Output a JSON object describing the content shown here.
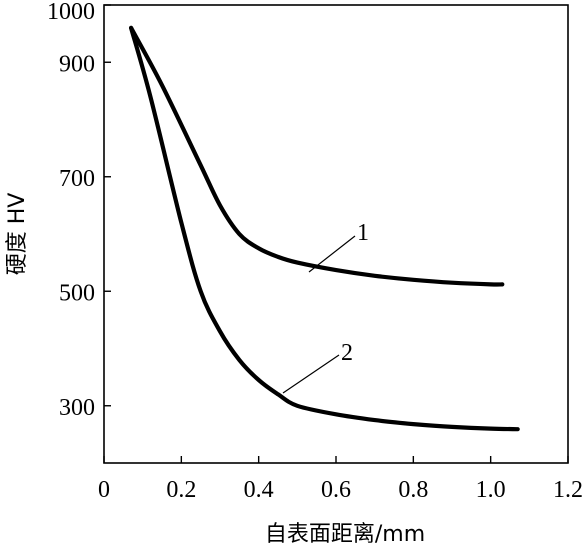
{
  "chart_data": {
    "type": "line",
    "title": "",
    "xlabel": "自表面距离/mm",
    "ylabel": "硬度 HV",
    "xlim": [
      0,
      1.2
    ],
    "ylim": [
      200,
      1000
    ],
    "x_ticks": [
      "0",
      "0.2",
      "0.4",
      "0.6",
      "0.8",
      "1.0",
      "1.2"
    ],
    "y_ticks": [
      "300",
      "500",
      "700",
      "900",
      "1000"
    ],
    "grid": false,
    "legend": "none",
    "series": [
      {
        "name": "1",
        "x": [
          0.07,
          0.15,
          0.25,
          0.3,
          0.35,
          0.4,
          0.45,
          0.5,
          0.6,
          0.7,
          0.8,
          0.9,
          1.0,
          1.03
        ],
        "y": [
          960,
          860,
          720,
          650,
          600,
          575,
          560,
          550,
          537,
          527,
          520,
          515,
          512,
          512
        ]
      },
      {
        "name": "2",
        "x": [
          0.07,
          0.12,
          0.2,
          0.25,
          0.3,
          0.35,
          0.4,
          0.45,
          0.5,
          0.6,
          0.7,
          0.8,
          0.9,
          1.0,
          1.07
        ],
        "y": [
          960,
          840,
          620,
          500,
          430,
          380,
          345,
          320,
          300,
          285,
          275,
          268,
          263,
          260,
          259
        ]
      }
    ]
  }
}
